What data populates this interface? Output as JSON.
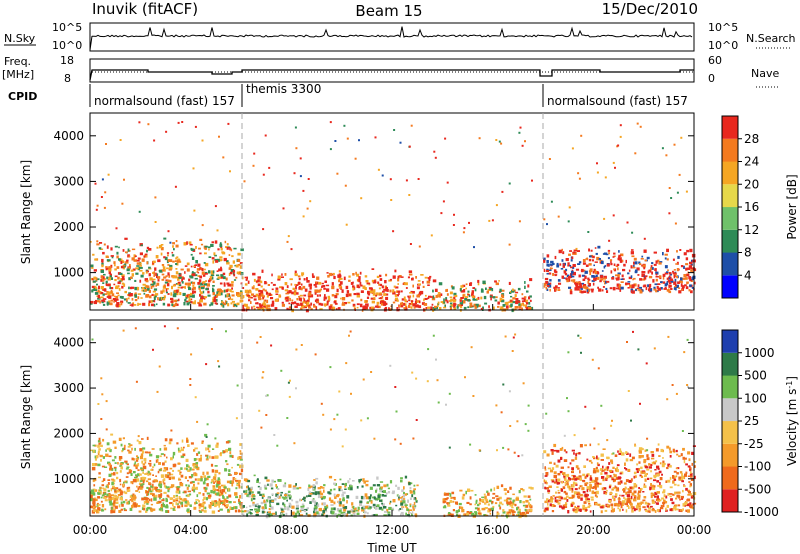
{
  "header": {
    "title": "Inuvik (fitACF)",
    "beam": "Beam 15",
    "date": "15/Dec/2010"
  },
  "top_panels": {
    "nsky_label": "N.Sky",
    "nsky_ticks": [
      "10^5",
      "10^0"
    ],
    "nsky_right_ticks": [
      "10^5",
      "10^0"
    ],
    "nsearch_label": "N.Search",
    "freq_label": "Freq.",
    "freq_unit": "[MHz]",
    "freq_ticks": [
      "18",
      "8"
    ],
    "nave_ticks": [
      "60",
      "0"
    ],
    "nave_label": "Nave",
    "cpid_label": "CPID",
    "cpid_segments": [
      {
        "label": "normalsound (fast) 157",
        "start_h": 0,
        "end_h": 6
      },
      {
        "label": "themis 3300",
        "start_h": 6,
        "end_h": 18
      },
      {
        "label": "normalsound (fast) 157",
        "start_h": 18,
        "end_h": 24
      }
    ]
  },
  "axes": {
    "ylabel": "Slant Range [km]",
    "yticks": [
      "4000",
      "3000",
      "2000",
      "1000"
    ],
    "xlabel": "Time UT",
    "xticks": [
      "00:00",
      "04:00",
      "08:00",
      "12:00",
      "16:00",
      "20:00",
      "00:00"
    ]
  },
  "colorbars": {
    "power": {
      "label": "Power [dB]",
      "ticks": [
        "28",
        "24",
        "20",
        "16",
        "12",
        "8",
        "4"
      ],
      "colors": [
        "#0000ff",
        "#1e4fa8",
        "#2e8b57",
        "#6fc16a",
        "#e6d84a",
        "#f5a623",
        "#f47a1f",
        "#e8281e"
      ]
    },
    "velocity": {
      "label": "Velocity [m s^-1]",
      "label_main": "Velocity  [m s",
      "label_sup": "-1",
      "label_end": "]",
      "ticks": [
        "1000",
        "500",
        "100",
        "25",
        "-25",
        "-100",
        "-500",
        "-1000"
      ],
      "colors": [
        "#1f3fae",
        "#2e7a48",
        "#6dbb4e",
        "#c8c8c8",
        "#f4c14a",
        "#f49a2a",
        "#ef6a1c",
        "#e02020"
      ]
    }
  },
  "chart_data": [
    {
      "type": "heatmap",
      "title": "Power",
      "x_range_hours": [
        0,
        24
      ],
      "ylim": [
        180,
        4500
      ],
      "features": [
        {
          "t_start": 0.0,
          "t_end": 6.0,
          "r_start": 300,
          "r_end": 1800,
          "dominant": "orange-red"
        },
        {
          "t_start": 6.0,
          "t_end": 13.5,
          "r_start": 200,
          "r_end": 1100,
          "dominant": "red-orange"
        },
        {
          "t_start": 13.5,
          "t_end": 17.5,
          "r_start": 200,
          "r_end": 900,
          "dominant": "orange"
        },
        {
          "t_start": 18.0,
          "t_end": 24.0,
          "r_start": 600,
          "r_end": 1600,
          "dominant": "red"
        }
      ]
    },
    {
      "type": "heatmap",
      "title": "Velocity",
      "x_range_hours": [
        0,
        24
      ],
      "ylim": [
        180,
        4500
      ],
      "features": [
        {
          "t_start": 0.0,
          "t_end": 6.0,
          "r_start": 300,
          "r_end": 2000,
          "dominant": "orange"
        },
        {
          "t_start": 6.0,
          "t_end": 13.0,
          "r_start": 200,
          "r_end": 1100,
          "dominant": "green-grey"
        },
        {
          "t_start": 14.0,
          "t_end": 17.5,
          "r_start": 200,
          "r_end": 900,
          "dominant": "orange"
        },
        {
          "t_start": 18.0,
          "t_end": 24.0,
          "r_start": 300,
          "r_end": 1800,
          "dominant": "orange-red"
        }
      ]
    }
  ]
}
